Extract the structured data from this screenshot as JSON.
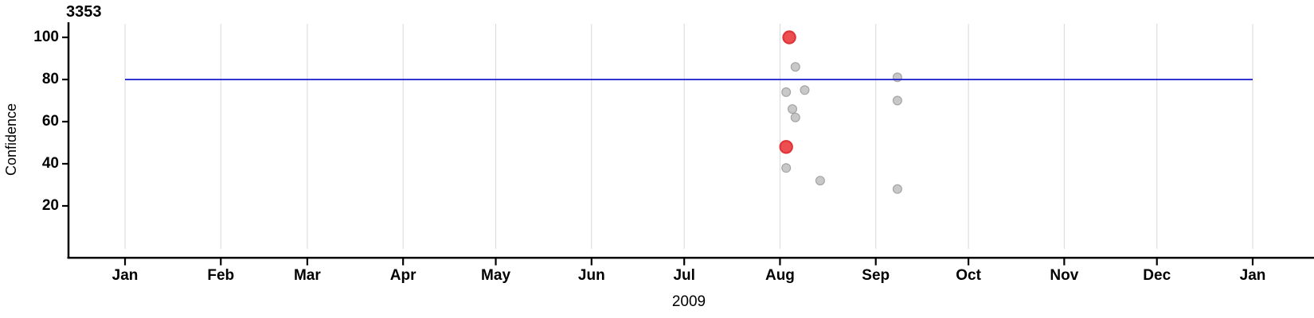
{
  "chart_data": {
    "type": "scatter",
    "title": "3353",
    "xlabel": "2009",
    "ylabel": "Confidence",
    "x_range": [
      "2009-01-01",
      "2010-01-01"
    ],
    "x_tick_labels": [
      "Jan",
      "Feb",
      "Mar",
      "Apr",
      "May",
      "Jun",
      "Jul",
      "Aug",
      "Sep",
      "Oct",
      "Nov",
      "Dec",
      "Jan"
    ],
    "yticks": [
      20,
      40,
      60,
      80,
      100
    ],
    "ylim": [
      0,
      106
    ],
    "grid": "vertical-monthly",
    "legend": "none",
    "gridline_color": "#d8d8d8",
    "axis_color": "#000000",
    "reference_line": {
      "value": 80,
      "color": "#1818cf"
    },
    "series": [
      {
        "name": "detections",
        "marker_color": "#c8c8c8",
        "marker_edge": "#a4a4a4",
        "marker_radius": 5.4,
        "points": [
          {
            "date": "2009-08-03",
            "confidence": 74
          },
          {
            "date": "2009-08-09",
            "confidence": 75
          },
          {
            "date": "2009-08-06",
            "confidence": 86
          },
          {
            "date": "2009-08-05",
            "confidence": 66
          },
          {
            "date": "2009-08-06",
            "confidence": 62
          },
          {
            "date": "2009-08-03",
            "confidence": 38
          },
          {
            "date": "2009-08-14",
            "confidence": 32
          },
          {
            "date": "2009-09-08",
            "confidence": 81
          },
          {
            "date": "2009-09-08",
            "confidence": 70
          },
          {
            "date": "2009-09-08",
            "confidence": 28
          }
        ]
      },
      {
        "name": "highlighted-detections",
        "marker_color": "#ec4e51",
        "marker_edge": "#e03538",
        "marker_radius": 7.6,
        "points": [
          {
            "date": "2009-08-04",
            "confidence": 100
          },
          {
            "date": "2009-08-03",
            "confidence": 48
          }
        ]
      }
    ]
  }
}
